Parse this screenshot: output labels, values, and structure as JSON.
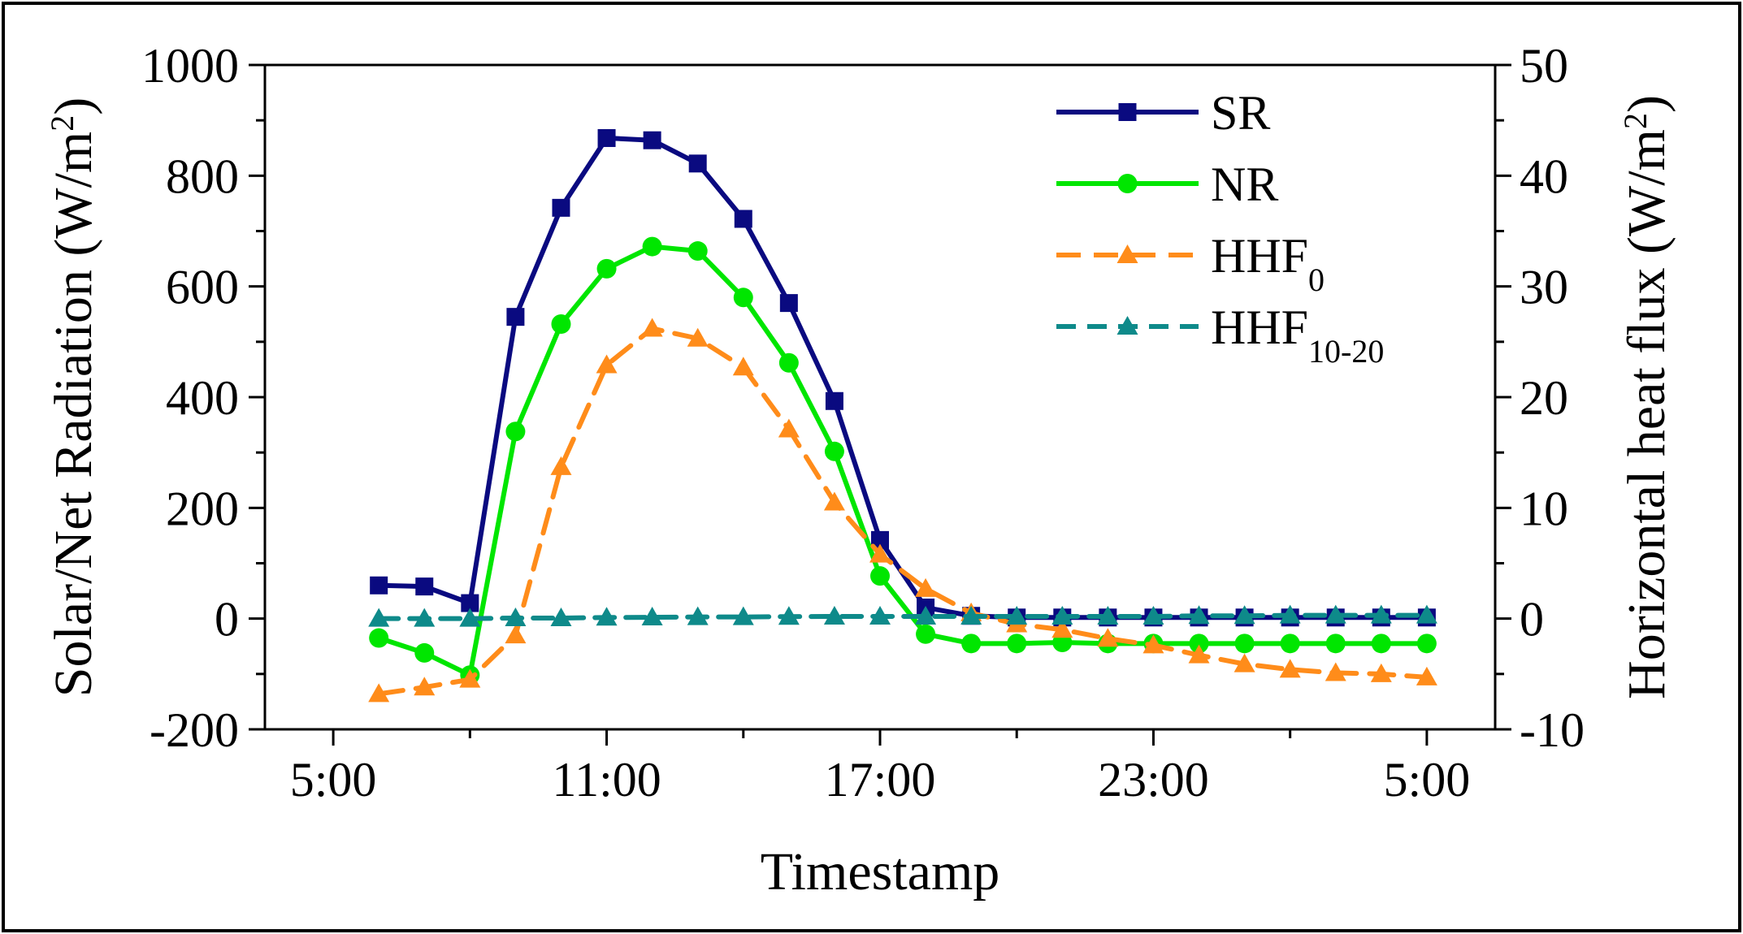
{
  "chart_data": {
    "type": "line",
    "title": "",
    "xlabel": "Timestamp",
    "ylabel": "Solar/Net Radiation (W/m",
    "ylabel_sup": "2",
    "ylabel_end": ")",
    "y2label": "Horizontal heat flux (W/m",
    "y2label_sup": "2",
    "y2label_end": ")",
    "xlim": [
      3.5,
      30.5
    ],
    "ylim": [
      -200,
      1000
    ],
    "y2lim": [
      -10,
      50
    ],
    "xticks": [
      5,
      11,
      17,
      23,
      29
    ],
    "xtick_labels": [
      "5:00",
      "11:00",
      "17:00",
      "23:00",
      "5:00"
    ],
    "yticks": [
      -200,
      0,
      200,
      400,
      600,
      800,
      1000
    ],
    "ytick_labels": [
      "-200",
      "0",
      "200",
      "400",
      "600",
      "800",
      "1000"
    ],
    "y2ticks": [
      -10,
      0,
      10,
      20,
      30,
      40,
      50
    ],
    "y2tick_labels": [
      "-10",
      "0",
      "10",
      "20",
      "30",
      "40",
      "50"
    ],
    "legend_position": "top-right",
    "x": [
      6,
      7,
      8,
      9,
      10,
      11,
      12,
      13,
      14,
      15,
      16,
      17,
      18,
      19,
      20,
      21,
      22,
      23,
      24,
      25,
      26,
      27,
      28,
      29
    ],
    "series": [
      {
        "name": "SR",
        "legend_main": "SR",
        "legend_sub": "",
        "axis": "left",
        "color": "#0a0a80",
        "marker": "square",
        "dash": "",
        "values": [
          60,
          58,
          28,
          545,
          742,
          868,
          864,
          822,
          722,
          570,
          393,
          142,
          20,
          5,
          2,
          2,
          2,
          2,
          2,
          2,
          2,
          2,
          2,
          2
        ]
      },
      {
        "name": "NR",
        "legend_main": "NR",
        "legend_sub": "",
        "axis": "left",
        "color": "#00e600",
        "marker": "circle",
        "dash": "",
        "values": [
          -35,
          -62,
          -102,
          338,
          532,
          632,
          672,
          664,
          580,
          462,
          302,
          77,
          -28,
          -45,
          -45,
          -43,
          -45,
          -45,
          -45,
          -45,
          -45,
          -45,
          -45,
          -45
        ]
      },
      {
        "name": "HHF0",
        "legend_main": "HHF",
        "legend_sub": "0",
        "axis": "right",
        "color": "#ff8c1a",
        "marker": "triangle",
        "dash": "30 16",
        "values": [
          -6.8,
          -6.2,
          -5.5,
          -1.5,
          13.7,
          22.9,
          26.2,
          25.3,
          22.7,
          17.1,
          10.5,
          5.8,
          2.7,
          0.5,
          -0.5,
          -1.0,
          -1.8,
          -2.4,
          -3.3,
          -4.1,
          -4.6,
          -4.9,
          -5.0,
          -5.3
        ]
      },
      {
        "name": "HHF10-20",
        "legend_main": "HHF",
        "legend_sub": "10-20",
        "axis": "right",
        "color": "#0e8a8a",
        "marker": "triangle",
        "dash": "24 14",
        "values": [
          0.0,
          0.0,
          0.0,
          0.05,
          0.05,
          0.1,
          0.12,
          0.15,
          0.15,
          0.18,
          0.2,
          0.2,
          0.2,
          0.2,
          0.2,
          0.2,
          0.2,
          0.2,
          0.25,
          0.25,
          0.3,
          0.3,
          0.3,
          0.3
        ]
      }
    ]
  }
}
